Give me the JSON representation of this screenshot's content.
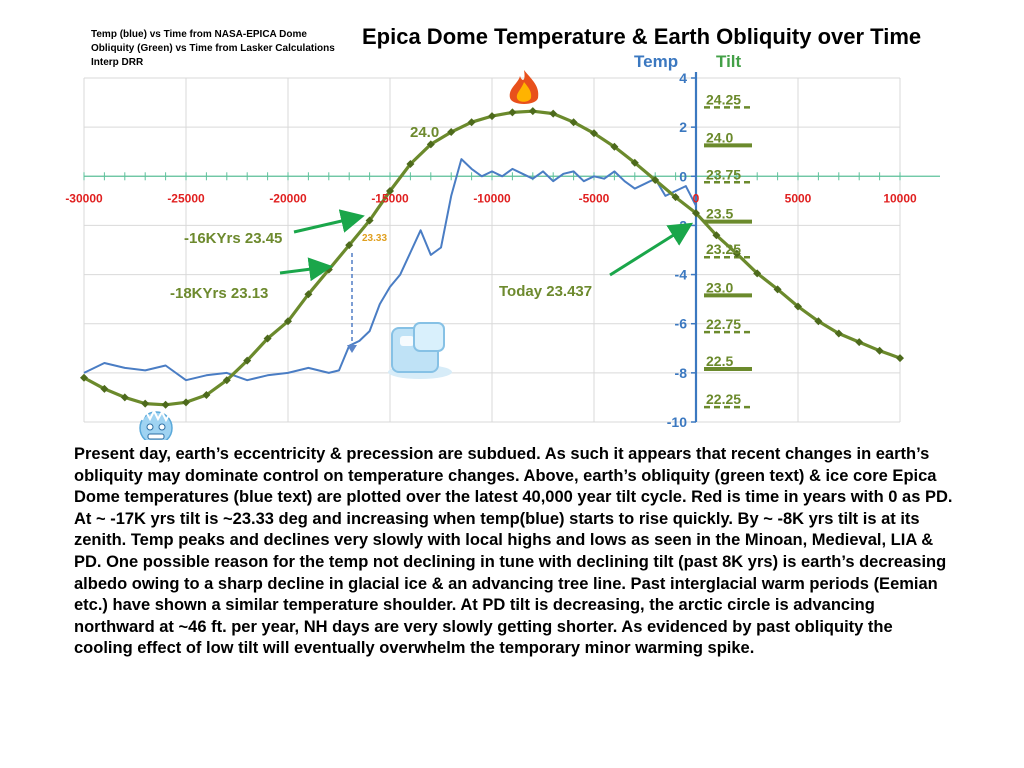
{
  "header": {
    "credits": [
      "Temp (blue) vs Time from NASA-EPICA Dome",
      "Obliquity (Green) vs Time from Lasker Calculations",
      "Interp DRR"
    ],
    "title": "Epica Dome Temperature & Earth Obliquity over Time",
    "temp_axis_title": "Temp",
    "tilt_axis_title": "Tilt"
  },
  "chart_data": {
    "type": "line",
    "xlim": [
      -30000,
      10000
    ],
    "ylim": [
      -10,
      4
    ],
    "x_ticks": [
      -30000,
      -25000,
      -20000,
      -15000,
      -10000,
      -5000,
      0,
      5000,
      10000
    ],
    "y_ticks": [
      4,
      2,
      0,
      -2,
      -4,
      -6,
      -8,
      -10
    ],
    "tilt_labels": [
      "24.25",
      "24.0",
      "23.75",
      "23.5",
      "23.25",
      "23.0",
      "22.75",
      "22.5",
      "22.25"
    ],
    "series": [
      {
        "name": "Obliquity (Green)",
        "color": "#6b8a2c",
        "x": [
          -30000,
          -29000,
          -28000,
          -27000,
          -26000,
          -25000,
          -24000,
          -23000,
          -22000,
          -21000,
          -20000,
          -19000,
          -18000,
          -17000,
          -16000,
          -15000,
          -14000,
          -13000,
          -12000,
          -11000,
          -10000,
          -9000,
          -8000,
          -7000,
          -6000,
          -5000,
          -4000,
          -3000,
          -2000,
          -1000,
          0,
          1000,
          2000,
          3000,
          4000,
          5000,
          6000,
          7000,
          8000,
          9000,
          10000
        ],
        "values": [
          -8.2,
          -8.65,
          -9.0,
          -9.25,
          -9.3,
          -9.2,
          -8.9,
          -8.3,
          -7.5,
          -6.6,
          -5.9,
          -4.8,
          -3.8,
          -2.8,
          -1.8,
          -0.6,
          0.5,
          1.3,
          1.8,
          2.2,
          2.45,
          2.6,
          2.65,
          2.55,
          2.2,
          1.75,
          1.2,
          0.55,
          -0.15,
          -0.85,
          -1.5,
          -2.4,
          -3.15,
          -3.95,
          -4.6,
          -5.3,
          -5.9,
          -6.4,
          -6.75,
          -7.1,
          -7.4
        ]
      },
      {
        "name": "Temp (blue)",
        "color": "#4a7dc4",
        "x": [
          -30000,
          -29000,
          -28000,
          -27000,
          -26000,
          -25000,
          -24000,
          -23000,
          -22000,
          -21000,
          -20000,
          -19000,
          -18000,
          -17500,
          -17000,
          -16500,
          -16000,
          -15500,
          -15000,
          -14500,
          -14000,
          -13500,
          -13000,
          -12500,
          -12000,
          -11500,
          -11000,
          -10500,
          -10000,
          -9500,
          -9000,
          -8500,
          -8000,
          -7500,
          -7000,
          -6500,
          -6000,
          -5500,
          -5000,
          -4500,
          -4000,
          -3500,
          -3000,
          -2500,
          -2000,
          -1500,
          -1000,
          -500,
          0
        ],
        "values": [
          -8.0,
          -7.6,
          -7.8,
          -7.9,
          -7.7,
          -8.3,
          -8.1,
          -8.0,
          -8.3,
          -8.1,
          -8.0,
          -7.8,
          -8.0,
          -7.9,
          -6.9,
          -6.7,
          -6.3,
          -5.2,
          -4.5,
          -4.0,
          -3.1,
          -2.2,
          -3.2,
          -2.9,
          -0.8,
          0.7,
          0.3,
          0.0,
          0.2,
          0.0,
          0.3,
          0.1,
          -0.1,
          0.2,
          -0.2,
          0.1,
          0.2,
          -0.2,
          0.0,
          -0.1,
          0.2,
          -0.2,
          -0.5,
          -0.3,
          -0.1,
          -0.8,
          -0.6,
          -0.4,
          -1.2
        ]
      }
    ]
  },
  "annotations": {
    "tilt_24_0": "24.0",
    "kyrs16": "-16KYrs  23.45",
    "kyrs18": "-18KYrs  23.13",
    "rise_mark": "23.33",
    "today": "Today  23.437"
  },
  "description": "Present day, earth’s eccentricity & precession are subdued. As such it appears that recent changes in earth’s obliquity may dominate control on temperature changes. Above, earth’s obliquity (green text) & ice core Epica Dome temperatures (blue text) are plotted over the latest 40,000 year tilt cycle. Red is time in years with 0 as PD. At ~ -17K yrs tilt is ~23.33 deg and increasing when temp(blue)  starts to rise quickly. By ~ -8K yrs tilt is at its zenith. Temp peaks and declines very slowly  with local highs and lows as seen in the Minoan, Medieval, LIA & PD. One possible reason for the temp not declining in tune with declining tilt (past 8K yrs)  is earth’s decreasing albedo owing to a sharp decline in glacial ice & an advancing tree line. Past interglacial warm periods (Eemian etc.) have shown a similar temperature shoulder. At PD tilt is decreasing, the arctic circle is advancing northward at ~46 ft. per year, NH days are very slowly getting shorter.  As evidenced by past obliquity the cooling effect of low tilt will eventually overwhelm the temporary minor warming spike.",
  "icons": [
    "fire-icon",
    "ice-cube-icon",
    "frozen-face-icon"
  ],
  "colors": {
    "temp": "#4a7dc4",
    "tilt": "#6b8a2c",
    "time_axis": "#e02020",
    "arrows": "#1aa64a",
    "grid_axis": "#5ec29b"
  }
}
